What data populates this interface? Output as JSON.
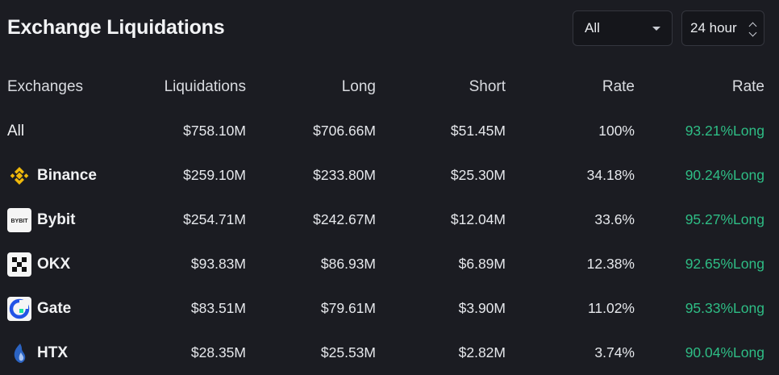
{
  "title": "Exchange Liquidations",
  "filters": {
    "exchange": "All",
    "period": "24 hour"
  },
  "columns": [
    "Exchanges",
    "Liquidations",
    "Long",
    "Short",
    "Rate",
    "Rate"
  ],
  "rows": [
    {
      "exchange": "All",
      "icon": "",
      "liquidations": "$758.10M",
      "long": "$706.66M",
      "short": "$51.45M",
      "rate": "100%",
      "long_rate": "93.21%Long"
    },
    {
      "exchange": "Binance",
      "icon": "binance-icon",
      "liquidations": "$259.10M",
      "long": "$233.80M",
      "short": "$25.30M",
      "rate": "34.18%",
      "long_rate": "90.24%Long"
    },
    {
      "exchange": "Bybit",
      "icon": "bybit-icon",
      "liquidations": "$254.71M",
      "long": "$242.67M",
      "short": "$12.04M",
      "rate": "33.6%",
      "long_rate": "95.27%Long"
    },
    {
      "exchange": "OKX",
      "icon": "okx-icon",
      "liquidations": "$93.83M",
      "long": "$86.93M",
      "short": "$6.89M",
      "rate": "12.38%",
      "long_rate": "92.65%Long"
    },
    {
      "exchange": "Gate",
      "icon": "gate-icon",
      "liquidations": "$83.51M",
      "long": "$79.61M",
      "short": "$3.90M",
      "rate": "11.02%",
      "long_rate": "95.33%Long"
    },
    {
      "exchange": "HTX",
      "icon": "htx-icon",
      "liquidations": "$28.35M",
      "long": "$25.53M",
      "short": "$2.82M",
      "rate": "3.74%",
      "long_rate": "90.04%Long"
    }
  ],
  "logo_text": {
    "bybit": "BYBIT"
  },
  "colors": {
    "background": "#1b1c22",
    "positive": "#2ebd85",
    "binance": "#f0b90b",
    "gate": "#2354e6",
    "htx": "#2b63c2"
  }
}
